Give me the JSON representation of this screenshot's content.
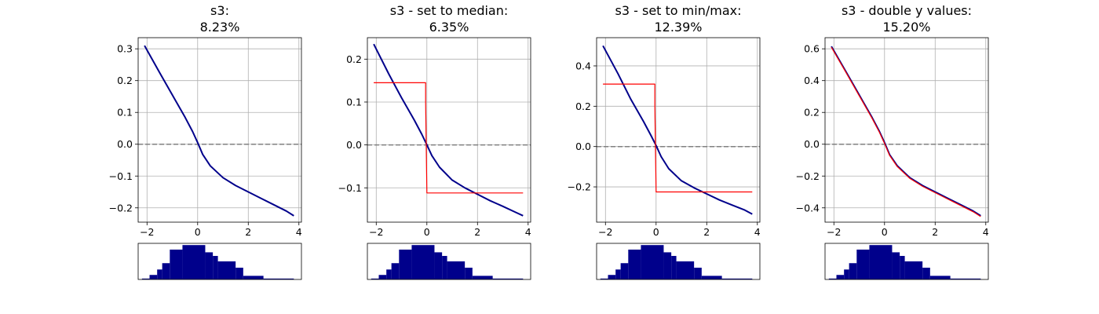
{
  "chart_data": [
    {
      "type": "line",
      "title_line1": "s3:",
      "title_line2": "8.23%",
      "xlim": [
        -2.35,
        4.1
      ],
      "ylim": [
        -0.245,
        0.335
      ],
      "xticks": [
        -2,
        0,
        2,
        4
      ],
      "yticks": [
        -0.2,
        -0.1,
        0.0,
        0.1,
        0.2,
        0.3
      ],
      "ytick_labels": [
        "−0.2",
        "−0.1",
        "0.0",
        "0.1",
        "0.2",
        "0.3"
      ],
      "xtick_labels": [
        "−2",
        "0",
        "2",
        "4"
      ],
      "grid": true,
      "hline": 0,
      "series": [
        {
          "color": "#00008B",
          "x": [
            -2.1,
            -1.5,
            -1.0,
            -0.5,
            -0.2,
            0.0,
            0.2,
            0.5,
            1.0,
            1.5,
            2.0,
            2.5,
            3.0,
            3.5,
            3.8
          ],
          "y": [
            0.31,
            0.225,
            0.155,
            0.085,
            0.04,
            0.005,
            -0.032,
            -0.068,
            -0.105,
            -0.13,
            -0.15,
            -0.17,
            -0.19,
            -0.21,
            -0.225
          ]
        }
      ],
      "histogram": {
        "edges": [
          -2.2,
          -1.9,
          -1.6,
          -1.4,
          -1.1,
          -0.6,
          0.3,
          0.6,
          0.8,
          1.5,
          1.8,
          2.6,
          3.8
        ],
        "counts": [
          1,
          5,
          11,
          18,
          33,
          38,
          30,
          26,
          20,
          13,
          4,
          1
        ]
      }
    },
    {
      "type": "line",
      "title_line1": "s3 - set to median:",
      "title_line2": "6.35%",
      "xlim": [
        -2.35,
        4.1
      ],
      "ylim": [
        -0.18,
        0.25
      ],
      "xticks": [
        -2,
        0,
        2,
        4
      ],
      "yticks": [
        -0.1,
        0.0,
        0.1,
        0.2
      ],
      "ytick_labels": [
        "−0.1",
        "0.0",
        "0.1",
        "0.2"
      ],
      "xtick_labels": [
        "−2",
        "0",
        "2",
        "4"
      ],
      "grid": true,
      "hline": 0,
      "series": [
        {
          "color": "#00008B",
          "x": [
            -2.1,
            -1.5,
            -1.0,
            -0.5,
            -0.2,
            0.0,
            0.2,
            0.5,
            1.0,
            1.5,
            2.0,
            2.5,
            3.0,
            3.5,
            3.8
          ],
          "y": [
            0.235,
            0.165,
            0.11,
            0.058,
            0.025,
            0.0,
            -0.025,
            -0.052,
            -0.082,
            -0.1,
            -0.115,
            -0.13,
            -0.143,
            -0.157,
            -0.165
          ]
        },
        {
          "color": "#FF0000",
          "x": [
            -2.1,
            -0.05,
            -0.05,
            0.0,
            3.8
          ],
          "y": [
            0.145,
            0.145,
            0.1,
            -0.112,
            -0.112
          ]
        }
      ],
      "histogram": {
        "edges": [
          -2.2,
          -1.9,
          -1.6,
          -1.4,
          -1.1,
          -0.6,
          0.3,
          0.6,
          0.8,
          1.5,
          1.8,
          2.6,
          3.8
        ],
        "counts": [
          1,
          5,
          11,
          18,
          33,
          38,
          30,
          26,
          20,
          13,
          4,
          1
        ]
      }
    },
    {
      "type": "line",
      "title_line1": "s3 - set to min/max:",
      "title_line2": "12.39%",
      "xlim": [
        -2.35,
        4.1
      ],
      "ylim": [
        -0.375,
        0.54
      ],
      "xticks": [
        -2,
        0,
        2,
        4
      ],
      "yticks": [
        -0.2,
        0.0,
        0.2,
        0.4
      ],
      "ytick_labels": [
        "−0.2",
        "0.0",
        "0.2",
        "0.4"
      ],
      "xtick_labels": [
        "−2",
        "0",
        "2",
        "4"
      ],
      "grid": true,
      "hline": 0,
      "series": [
        {
          "color": "#00008B",
          "x": [
            -2.1,
            -1.5,
            -1.0,
            -0.5,
            -0.2,
            0.0,
            0.2,
            0.5,
            1.0,
            1.5,
            2.0,
            2.5,
            3.0,
            3.5,
            3.8
          ],
          "y": [
            0.5,
            0.36,
            0.235,
            0.125,
            0.055,
            0.005,
            -0.05,
            -0.11,
            -0.17,
            -0.205,
            -0.235,
            -0.265,
            -0.29,
            -0.315,
            -0.335
          ]
        },
        {
          "color": "#FF0000",
          "x": [
            -2.1,
            -0.05,
            -0.05,
            0.0,
            3.8
          ],
          "y": [
            0.31,
            0.31,
            0.2,
            -0.225,
            -0.225
          ]
        }
      ],
      "histogram": {
        "edges": [
          -2.2,
          -1.9,
          -1.6,
          -1.4,
          -1.1,
          -0.6,
          0.3,
          0.6,
          0.8,
          1.5,
          1.8,
          2.6,
          3.8
        ],
        "counts": [
          1,
          5,
          11,
          18,
          33,
          38,
          30,
          26,
          20,
          13,
          4,
          1
        ]
      }
    },
    {
      "type": "line",
      "title_line1": "s3 - double y values:",
      "title_line2": "15.20%",
      "xlim": [
        -2.35,
        4.1
      ],
      "ylim": [
        -0.49,
        0.67
      ],
      "xticks": [
        -2,
        0,
        2,
        4
      ],
      "yticks": [
        -0.4,
        -0.2,
        0.0,
        0.2,
        0.4,
        0.6
      ],
      "ytick_labels": [
        "−0.4",
        "−0.2",
        "0.0",
        "0.2",
        "0.4",
        "0.6"
      ],
      "xtick_labels": [
        "−2",
        "0",
        "2",
        "4"
      ],
      "grid": true,
      "hline": 0,
      "series": [
        {
          "color": "#00008B",
          "x": [
            -2.1,
            -1.5,
            -1.0,
            -0.5,
            -0.2,
            0.0,
            0.2,
            0.5,
            1.0,
            1.5,
            2.0,
            2.5,
            3.0,
            3.5,
            3.8
          ],
          "y": [
            0.615,
            0.45,
            0.31,
            0.17,
            0.08,
            0.01,
            -0.065,
            -0.135,
            -0.21,
            -0.26,
            -0.3,
            -0.34,
            -0.38,
            -0.42,
            -0.45
          ]
        },
        {
          "color": "#FF0000",
          "x": [
            -2.1,
            -1.5,
            -1.0,
            -0.5,
            -0.2,
            0.0,
            0.2,
            0.5,
            1.0,
            1.5,
            2.0,
            2.5,
            3.0,
            3.5,
            3.8
          ],
          "y": [
            0.61,
            0.445,
            0.305,
            0.165,
            0.075,
            0.005,
            -0.07,
            -0.14,
            -0.215,
            -0.265,
            -0.305,
            -0.345,
            -0.385,
            -0.425,
            -0.455
          ]
        }
      ],
      "histogram": {
        "edges": [
          -2.2,
          -1.9,
          -1.6,
          -1.4,
          -1.1,
          -0.6,
          0.3,
          0.6,
          0.8,
          1.5,
          1.8,
          2.6,
          3.8
        ],
        "counts": [
          1,
          5,
          11,
          18,
          33,
          38,
          30,
          26,
          20,
          13,
          4,
          1
        ]
      }
    }
  ],
  "colors": {
    "curve": "#00008B",
    "median": "#FF0000",
    "zero_line": "#808080",
    "grid": "#B0B0B0",
    "hist": "#00008B"
  }
}
